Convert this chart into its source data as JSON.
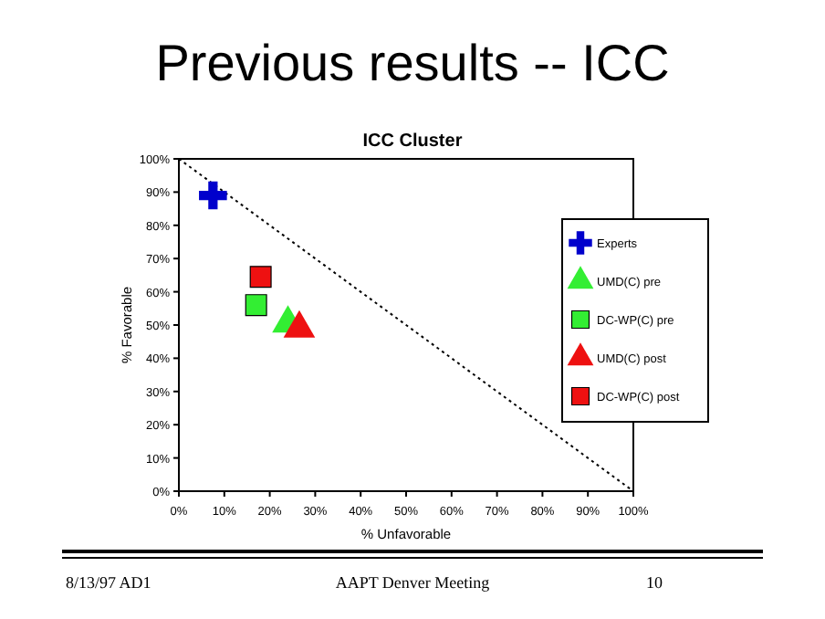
{
  "chart_data": {
    "type": "scatter",
    "title": "Previous results -- ICC",
    "subtitle": "ICC Cluster",
    "xlabel": "% Unfavorable",
    "ylabel": "% Favorable",
    "xlim": [
      0,
      100
    ],
    "ylim": [
      0,
      100
    ],
    "xticks": [
      {
        "value": 0,
        "label": "0%"
      },
      {
        "value": 10,
        "label": "10%"
      },
      {
        "value": 20,
        "label": "20%"
      },
      {
        "value": 30,
        "label": "30%"
      },
      {
        "value": 40,
        "label": "40%"
      },
      {
        "value": 50,
        "label": "50%"
      },
      {
        "value": 60,
        "label": "60%"
      },
      {
        "value": 70,
        "label": "70%"
      },
      {
        "value": 80,
        "label": "80%"
      },
      {
        "value": 90,
        "label": "90%"
      },
      {
        "value": 100,
        "label": "100%"
      }
    ],
    "yticks": [
      {
        "value": 0,
        "label": "0%"
      },
      {
        "value": 10,
        "label": "10%"
      },
      {
        "value": 20,
        "label": "20%"
      },
      {
        "value": 30,
        "label": "30%"
      },
      {
        "value": 40,
        "label": "40%"
      },
      {
        "value": 50,
        "label": "50%"
      },
      {
        "value": 60,
        "label": "60%"
      },
      {
        "value": 70,
        "label": "70%"
      },
      {
        "value": 80,
        "label": "80%"
      },
      {
        "value": 90,
        "label": "90%"
      },
      {
        "value": 100,
        "label": "100%"
      }
    ],
    "grid": false,
    "legend": "right",
    "series": [
      {
        "type": "line",
        "color": "#000000",
        "line_style": "dotted",
        "marker": "none",
        "x": [
          0,
          100
        ],
        "values": [
          100,
          0
        ]
      },
      {
        "name": "Experts",
        "color": "#0000cc",
        "marker": "cross",
        "x": [
          7.5
        ],
        "values": [
          89
        ]
      },
      {
        "name": "UMD(C) pre",
        "color": "#33ee33",
        "marker": "triangle",
        "x": [
          24
        ],
        "values": [
          50.5
        ]
      },
      {
        "name": "DC-WP(C) pre",
        "color": "#33ee33",
        "marker": "square",
        "x": [
          17
        ],
        "values": [
          56
        ]
      },
      {
        "name": "UMD(C) post",
        "color": "#ee1111",
        "marker": "triangle",
        "x": [
          26.5
        ],
        "values": [
          49
        ]
      },
      {
        "name": "DC-WP(C) post",
        "color": "#ee1111",
        "marker": "square",
        "x": [
          18
        ],
        "values": [
          64.5
        ]
      }
    ],
    "annotations": [
      "8/13/97 AD1",
      "AAPT Denver Meeting",
      "10"
    ]
  }
}
